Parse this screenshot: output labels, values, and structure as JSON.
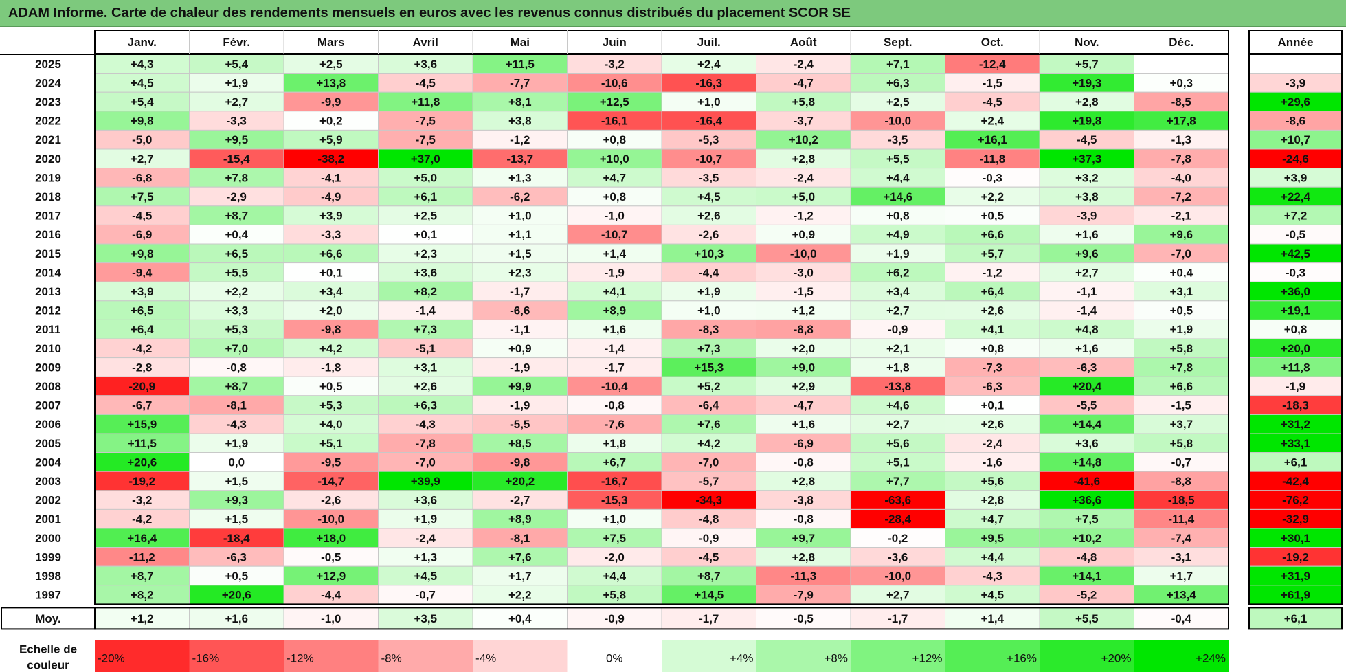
{
  "title": "ADAM Informe. Carte de chaleur des rendements mensuels en euros avec les revenus connus distribués du placement SCOR SE",
  "chart_data": {
    "type": "heatmap",
    "months": [
      "Janv.",
      "Févr.",
      "Mars",
      "Avril",
      "Mai",
      "Juin",
      "Juil.",
      "Août",
      "Sept.",
      "Oct.",
      "Nov.",
      "Déc."
    ],
    "annual_header": "Année",
    "rows": [
      {
        "year": "2025",
        "values": [
          "+4,3",
          "+5,4",
          "+2,5",
          "+3,6",
          "+11,5",
          "-3,2",
          "+2,4",
          "-2,4",
          "+7,1",
          "-12,4",
          "+5,7",
          ""
        ],
        "annual": ""
      },
      {
        "year": "2024",
        "values": [
          "+4,5",
          "+1,9",
          "+13,8",
          "-4,5",
          "-7,7",
          "-10,6",
          "-16,3",
          "-4,7",
          "+6,3",
          "-1,5",
          "+19,3",
          "+0,3"
        ],
        "annual": "-3,9"
      },
      {
        "year": "2023",
        "values": [
          "+5,4",
          "+2,7",
          "-9,9",
          "+11,8",
          "+8,1",
          "+12,5",
          "+1,0",
          "+5,8",
          "+2,5",
          "-4,5",
          "+2,8",
          "-8,5"
        ],
        "annual": "+29,6"
      },
      {
        "year": "2022",
        "values": [
          "+9,8",
          "-3,3",
          "+0,2",
          "-7,5",
          "+3,8",
          "-16,1",
          "-16,4",
          "-3,7",
          "-10,0",
          "+2,4",
          "+19,8",
          "+17,8"
        ],
        "annual": "-8,6"
      },
      {
        "year": "2021",
        "values": [
          "-5,0",
          "+9,5",
          "+5,9",
          "-7,5",
          "-1,2",
          "+0,8",
          "-5,3",
          "+10,2",
          "-3,5",
          "+16,1",
          "-4,5",
          "-1,3"
        ],
        "annual": "+10,7"
      },
      {
        "year": "2020",
        "values": [
          "+2,7",
          "-15,4",
          "-38,2",
          "+37,0",
          "-13,7",
          "+10,0",
          "-10,7",
          "+2,8",
          "+5,5",
          "-11,8",
          "+37,3",
          "-7,8"
        ],
        "annual": "-24,6"
      },
      {
        "year": "2019",
        "values": [
          "-6,8",
          "+7,8",
          "-4,1",
          "+5,0",
          "+1,3",
          "+4,7",
          "-3,5",
          "-2,4",
          "+4,4",
          "-0,3",
          "+3,2",
          "-4,0"
        ],
        "annual": "+3,9"
      },
      {
        "year": "2018",
        "values": [
          "+7,5",
          "-2,9",
          "-4,9",
          "+6,1",
          "-6,2",
          "+0,8",
          "+4,5",
          "+5,0",
          "+14,6",
          "+2,2",
          "+3,8",
          "-7,2"
        ],
        "annual": "+22,4"
      },
      {
        "year": "2017",
        "values": [
          "-4,5",
          "+8,7",
          "+3,9",
          "+2,5",
          "+1,0",
          "-1,0",
          "+2,6",
          "-1,2",
          "+0,8",
          "+0,5",
          "-3,9",
          "-2,1"
        ],
        "annual": "+7,2"
      },
      {
        "year": "2016",
        "values": [
          "-6,9",
          "+0,4",
          "-3,3",
          "+0,1",
          "+1,1",
          "-10,7",
          "-2,6",
          "+0,9",
          "+4,9",
          "+6,6",
          "+1,6",
          "+9,6"
        ],
        "annual": "-0,5"
      },
      {
        "year": "2015",
        "values": [
          "+9,8",
          "+6,5",
          "+6,6",
          "+2,3",
          "+1,5",
          "+1,4",
          "+10,3",
          "-10,0",
          "+1,9",
          "+5,7",
          "+9,6",
          "-7,0"
        ],
        "annual": "+42,5"
      },
      {
        "year": "2014",
        "values": [
          "-9,4",
          "+5,5",
          "+0,1",
          "+3,6",
          "+2,3",
          "-1,9",
          "-4,4",
          "-3,0",
          "+6,2",
          "-1,2",
          "+2,7",
          "+0,4"
        ],
        "annual": "-0,3"
      },
      {
        "year": "2013",
        "values": [
          "+3,9",
          "+2,2",
          "+3,4",
          "+8,2",
          "-1,7",
          "+4,1",
          "+1,9",
          "-1,5",
          "+3,4",
          "+6,4",
          "-1,1",
          "+3,1"
        ],
        "annual": "+36,0"
      },
      {
        "year": "2012",
        "values": [
          "+6,5",
          "+3,3",
          "+2,0",
          "-1,4",
          "-6,6",
          "+8,9",
          "+1,0",
          "+1,2",
          "+2,7",
          "+2,6",
          "-1,4",
          "+0,5"
        ],
        "annual": "+19,1"
      },
      {
        "year": "2011",
        "values": [
          "+6,4",
          "+5,3",
          "-9,8",
          "+7,3",
          "-1,1",
          "+1,6",
          "-8,3",
          "-8,8",
          "-0,9",
          "+4,1",
          "+4,8",
          "+1,9"
        ],
        "annual": "+0,8"
      },
      {
        "year": "2010",
        "values": [
          "-4,2",
          "+7,0",
          "+4,2",
          "-5,1",
          "+0,9",
          "-1,4",
          "+7,3",
          "+2,0",
          "+2,1",
          "+0,8",
          "+1,6",
          "+5,8"
        ],
        "annual": "+20,0"
      },
      {
        "year": "2009",
        "values": [
          "-2,8",
          "-0,8",
          "-1,8",
          "+3,1",
          "-1,9",
          "-1,7",
          "+15,3",
          "+9,0",
          "+1,8",
          "-7,3",
          "-6,3",
          "+7,8"
        ],
        "annual": "+11,8"
      },
      {
        "year": "2008",
        "values": [
          "-20,9",
          "+8,7",
          "+0,5",
          "+2,6",
          "+9,9",
          "-10,4",
          "+5,2",
          "+2,9",
          "-13,8",
          "-6,3",
          "+20,4",
          "+6,6"
        ],
        "annual": "-1,9"
      },
      {
        "year": "2007",
        "values": [
          "-6,7",
          "-8,1",
          "+5,3",
          "+6,3",
          "-1,9",
          "-0,8",
          "-6,4",
          "-4,7",
          "+4,6",
          "+0,1",
          "-5,5",
          "-1,5"
        ],
        "annual": "-18,3"
      },
      {
        "year": "2006",
        "values": [
          "+15,9",
          "-4,3",
          "+4,0",
          "-4,3",
          "-5,5",
          "-7,6",
          "+7,6",
          "+1,6",
          "+2,7",
          "+2,6",
          "+14,4",
          "+3,7"
        ],
        "annual": "+31,2"
      },
      {
        "year": "2005",
        "values": [
          "+11,5",
          "+1,9",
          "+5,1",
          "-7,8",
          "+8,5",
          "+1,8",
          "+4,2",
          "-6,9",
          "+5,6",
          "-2,4",
          "+3,6",
          "+5,8"
        ],
        "annual": "+33,1"
      },
      {
        "year": "2004",
        "values": [
          "+20,6",
          "0,0",
          "-9,5",
          "-7,0",
          "-9,8",
          "+6,7",
          "-7,0",
          "-0,8",
          "+5,1",
          "-1,6",
          "+14,8",
          "-0,7"
        ],
        "annual": "+6,1"
      },
      {
        "year": "2003",
        "values": [
          "-19,2",
          "+1,5",
          "-14,7",
          "+39,9",
          "+20,2",
          "-16,7",
          "-5,7",
          "+2,8",
          "+7,7",
          "+5,6",
          "-41,6",
          "-8,8"
        ],
        "annual": "-42,4"
      },
      {
        "year": "2002",
        "values": [
          "-3,2",
          "+9,3",
          "-2,6",
          "+3,6",
          "-2,7",
          "-15,3",
          "-34,3",
          "-3,8",
          "-63,6",
          "+2,8",
          "+36,6",
          "-18,5"
        ],
        "annual": "-76,2"
      },
      {
        "year": "2001",
        "values": [
          "-4,2",
          "+1,5",
          "-10,0",
          "+1,9",
          "+8,9",
          "+1,0",
          "-4,8",
          "-0,8",
          "-28,4",
          "+4,7",
          "+7,5",
          "-11,4"
        ],
        "annual": "-32,9"
      },
      {
        "year": "2000",
        "values": [
          "+16,4",
          "-18,4",
          "+18,0",
          "-2,4",
          "-8,1",
          "+7,5",
          "-0,9",
          "+9,7",
          "-0,2",
          "+9,5",
          "+10,2",
          "-7,4"
        ],
        "annual": "+30,1"
      },
      {
        "year": "1999",
        "values": [
          "-11,2",
          "-6,3",
          "-0,5",
          "+1,3",
          "+7,6",
          "-2,0",
          "-4,5",
          "+2,8",
          "-3,6",
          "+4,4",
          "-4,8",
          "-3,1"
        ],
        "annual": "-19,2"
      },
      {
        "year": "1998",
        "values": [
          "+8,7",
          "+0,5",
          "+12,9",
          "+4,5",
          "+1,7",
          "+4,4",
          "+8,7",
          "-11,3",
          "-10,0",
          "-4,3",
          "+14,1",
          "+1,7"
        ],
        "annual": "+31,9"
      },
      {
        "year": "1997",
        "values": [
          "+8,2",
          "+20,6",
          "-4,4",
          "-0,7",
          "+2,2",
          "+5,8",
          "+14,5",
          "-7,9",
          "+2,7",
          "+4,5",
          "-5,2",
          "+13,4"
        ],
        "annual": "+61,9"
      }
    ],
    "average": {
      "label": "Moy.",
      "values": [
        "+1,2",
        "+1,6",
        "-1,0",
        "+3,5",
        "+0,4",
        "-0,9",
        "-1,7",
        "-0,5",
        "-1,7",
        "+1,4",
        "+5,5",
        "-0,4"
      ],
      "annual": "+6,1"
    },
    "legend": {
      "title": [
        "Echelle de",
        "couleur"
      ],
      "stops": [
        {
          "label": "-20%",
          "value": -20
        },
        {
          "label": "-16%",
          "value": -16
        },
        {
          "label": "-12%",
          "value": -12
        },
        {
          "label": "-8%",
          "value": -8
        },
        {
          "label": "-4%",
          "value": -4
        },
        {
          "label": "0%",
          "value": 0
        },
        {
          "label": "+4%",
          "value": 4
        },
        {
          "label": "+8%",
          "value": 8
        },
        {
          "label": "+12%",
          "value": 12
        },
        {
          "label": "+16%",
          "value": 16
        },
        {
          "label": "+20%",
          "value": 20
        },
        {
          "label": "+24%",
          "value": 24
        }
      ]
    }
  }
}
